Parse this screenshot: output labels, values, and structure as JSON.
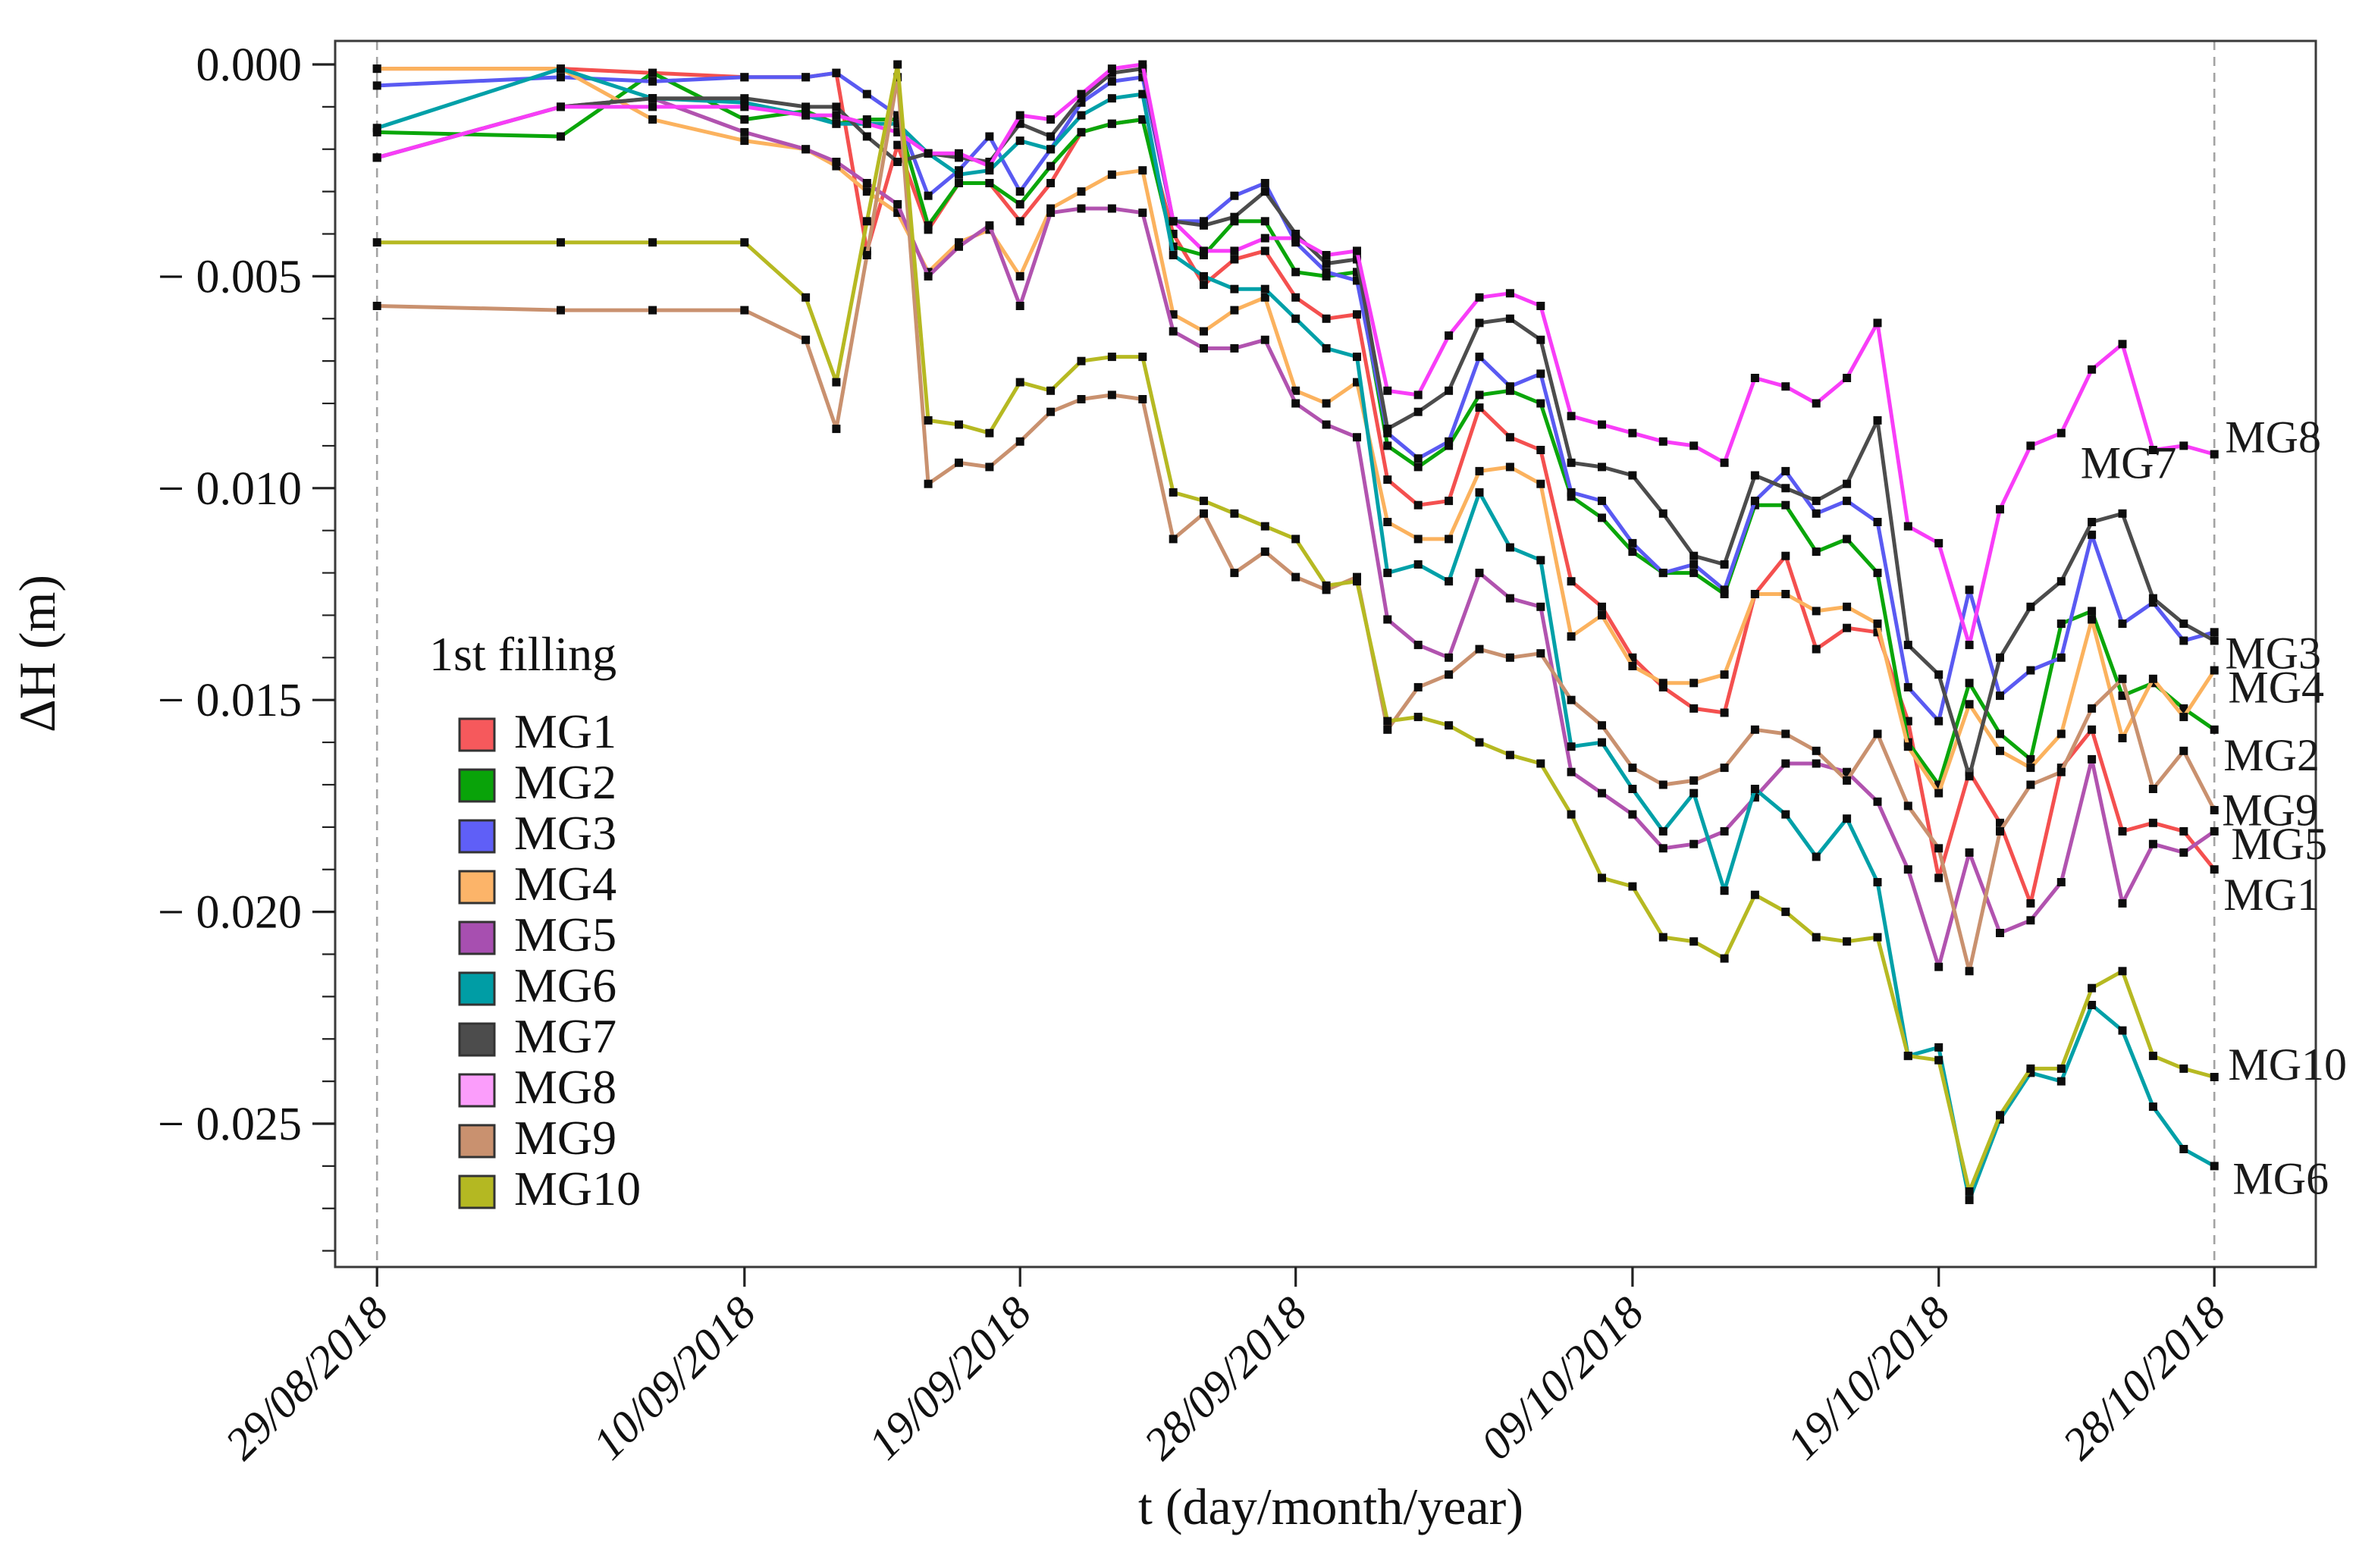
{
  "chart_data": {
    "type": "line",
    "title": "",
    "xlabel": "t (day/month/year)",
    "ylabel": "ΔH (m)",
    "legend_title": "1st filling",
    "legend_position": "inside-left",
    "grid": false,
    "x_start_date": "29/08/2018",
    "x_ticks": [
      {
        "day": 0,
        "label": "29/08/2018"
      },
      {
        "day": 12,
        "label": "10/09/2018"
      },
      {
        "day": 21,
        "label": "19/09/2018"
      },
      {
        "day": 30,
        "label": "28/09/2018"
      },
      {
        "day": 41,
        "label": "09/10/2018"
      },
      {
        "day": 51,
        "label": "19/10/2018"
      },
      {
        "day": 60,
        "label": "28/10/2018"
      }
    ],
    "y_ticks": [
      {
        "v": 0.0,
        "label": "0.000"
      },
      {
        "v": -0.005,
        "label": "− 0.005"
      },
      {
        "v": -0.01,
        "label": "− 0.010"
      },
      {
        "v": -0.015,
        "label": "− 0.015"
      },
      {
        "v": -0.02,
        "label": "− 0.020"
      },
      {
        "v": -0.025,
        "label": "− 0.025"
      }
    ],
    "y_minor_step": 0.001,
    "ylim": [
      -0.0284,
      0.00055
    ],
    "xlim_days": [
      -1.35,
      63.3
    ],
    "dashed_vlines_days": [
      0,
      60
    ],
    "marker": "black-square",
    "days": [
      0,
      6,
      9,
      12,
      14,
      15,
      16,
      17,
      18,
      19,
      20,
      21,
      22,
      23,
      24,
      25,
      26,
      27,
      28,
      29,
      30,
      31,
      32,
      33,
      34,
      35,
      36,
      37,
      38,
      39,
      40,
      41,
      42,
      43,
      44,
      45,
      46,
      47,
      48,
      49,
      50,
      51,
      52,
      53,
      54,
      55,
      56,
      57,
      58,
      59,
      60
    ],
    "series": [
      {
        "name": "MG1",
        "color": "#f4504f",
        "swatch": "#f6595c",
        "values": [
          -0.0001,
          -0.0001,
          -0.0002,
          -0.0003,
          -0.0003,
          -0.0002,
          -0.0044,
          -0.0019,
          -0.0039,
          -0.0028,
          -0.0028,
          -0.0037,
          -0.0028,
          -0.0016,
          -0.0014,
          -0.0013,
          -0.004,
          -0.0052,
          -0.0046,
          -0.0044,
          -0.0055,
          -0.006,
          -0.0059,
          -0.0098,
          -0.0104,
          -0.0103,
          -0.0081,
          -0.0088,
          -0.0091,
          -0.0122,
          -0.0128,
          -0.014,
          -0.0147,
          -0.0152,
          -0.0153,
          -0.0125,
          -0.0116,
          -0.0138,
          -0.0133,
          -0.0134,
          -0.0155,
          -0.0192,
          -0.0167,
          -0.0179,
          -0.0198,
          -0.0166,
          -0.0157,
          -0.0181,
          -0.0179,
          -0.0181,
          -0.019
        ]
      },
      {
        "name": "MG2",
        "color": "#0aa60a",
        "swatch": "#09a309",
        "values": [
          -0.0016,
          -0.0017,
          -0.0002,
          -0.0013,
          -0.0011,
          -0.0014,
          -0.0013,
          -0.0013,
          -0.0038,
          -0.0028,
          -0.0028,
          -0.0033,
          -0.0024,
          -0.0016,
          -0.0014,
          -0.0013,
          -0.0043,
          -0.0045,
          -0.0037,
          -0.0037,
          -0.0049,
          -0.005,
          -0.0049,
          -0.009,
          -0.0095,
          -0.009,
          -0.0078,
          -0.0077,
          -0.008,
          -0.0102,
          -0.0107,
          -0.0115,
          -0.012,
          -0.012,
          -0.0125,
          -0.0104,
          -0.0104,
          -0.0115,
          -0.0112,
          -0.012,
          -0.016,
          -0.017,
          -0.0146,
          -0.0158,
          -0.0164,
          -0.0132,
          -0.0129,
          -0.0149,
          -0.0146,
          -0.0152,
          -0.0157
        ]
      },
      {
        "name": "MG3",
        "color": "#5a5af2",
        "swatch": "#5f5ff7",
        "values": [
          -0.0005,
          -0.0003,
          -0.0004,
          -0.0003,
          -0.0003,
          -0.0002,
          -0.0007,
          -0.0012,
          -0.0031,
          -0.0025,
          -0.0017,
          -0.003,
          -0.002,
          -0.0009,
          -0.0004,
          -0.0003,
          -0.0037,
          -0.0037,
          -0.0031,
          -0.0028,
          -0.0042,
          -0.0049,
          -0.0051,
          -0.0087,
          -0.0093,
          -0.0089,
          -0.0069,
          -0.0076,
          -0.0073,
          -0.0101,
          -0.0103,
          -0.0113,
          -0.012,
          -0.0118,
          -0.0124,
          -0.0103,
          -0.0096,
          -0.0106,
          -0.0103,
          -0.0108,
          -0.0147,
          -0.0155,
          -0.0124,
          -0.0149,
          -0.0143,
          -0.014,
          -0.0111,
          -0.0132,
          -0.0127,
          -0.0136,
          -0.0134
        ]
      },
      {
        "name": "MG4",
        "color": "#fbb25e",
        "swatch": "#fcb469",
        "values": [
          -0.0001,
          -0.0001,
          -0.0013,
          -0.0018,
          -0.002,
          -0.0024,
          -0.003,
          -0.0035,
          -0.0049,
          -0.0042,
          -0.0039,
          -0.005,
          -0.0034,
          -0.003,
          -0.0026,
          -0.0025,
          -0.0059,
          -0.0063,
          -0.0058,
          -0.0055,
          -0.0077,
          -0.008,
          -0.0075,
          -0.0108,
          -0.0112,
          -0.0112,
          -0.0096,
          -0.0095,
          -0.0099,
          -0.0135,
          -0.013,
          -0.0142,
          -0.0146,
          -0.0146,
          -0.0144,
          -0.0125,
          -0.0125,
          -0.0129,
          -0.0128,
          -0.0132,
          -0.0161,
          -0.0172,
          -0.0151,
          -0.0162,
          -0.0166,
          -0.0158,
          -0.0131,
          -0.0159,
          -0.0145,
          -0.0154,
          -0.0143
        ]
      },
      {
        "name": "MG5",
        "color": "#b153af",
        "swatch": "#a74fb0",
        "values": [
          -0.0022,
          -0.001,
          -0.0008,
          -0.0016,
          -0.002,
          -0.0023,
          -0.0028,
          -0.0033,
          -0.005,
          -0.0043,
          -0.0038,
          -0.0057,
          -0.0035,
          -0.0034,
          -0.0034,
          -0.0035,
          -0.0063,
          -0.0067,
          -0.0067,
          -0.0065,
          -0.008,
          -0.0085,
          -0.0088,
          -0.0131,
          -0.0137,
          -0.014,
          -0.012,
          -0.0126,
          -0.0128,
          -0.0167,
          -0.0172,
          -0.0177,
          -0.0185,
          -0.0184,
          -0.0181,
          -0.0173,
          -0.0165,
          -0.0165,
          -0.0167,
          -0.0174,
          -0.019,
          -0.0213,
          -0.0186,
          -0.0205,
          -0.0202,
          -0.0193,
          -0.0164,
          -0.0198,
          -0.0184,
          -0.0186,
          -0.0181
        ]
      },
      {
        "name": "MG6",
        "color": "#00a0a8",
        "swatch": "#009da5",
        "values": [
          -0.0015,
          -0.0001,
          -0.0008,
          -0.0009,
          -0.0012,
          -0.0014,
          -0.0014,
          -0.0014,
          -0.0021,
          -0.0026,
          -0.0025,
          -0.0018,
          -0.002,
          -0.0012,
          -0.0008,
          -0.0007,
          -0.0045,
          -0.005,
          -0.0053,
          -0.0053,
          -0.006,
          -0.0067,
          -0.0069,
          -0.012,
          -0.0118,
          -0.0122,
          -0.0101,
          -0.0114,
          -0.0117,
          -0.0161,
          -0.016,
          -0.0171,
          -0.0181,
          -0.0172,
          -0.0195,
          -0.0171,
          -0.0177,
          -0.0187,
          -0.0178,
          -0.0193,
          -0.0234,
          -0.0232,
          -0.0268,
          -0.0249,
          -0.0238,
          -0.024,
          -0.0222,
          -0.0228,
          -0.0246,
          -0.0256,
          -0.026
        ]
      },
      {
        "name": "MG7",
        "color": "#4c4c4c",
        "swatch": "#4c4c4c",
        "values": [
          -0.0022,
          -0.001,
          -0.0008,
          -0.0008,
          -0.001,
          -0.001,
          -0.0017,
          -0.0023,
          -0.0021,
          -0.0022,
          -0.0023,
          -0.0014,
          -0.0017,
          -0.0008,
          -0.0002,
          -0.0001,
          -0.0037,
          -0.0038,
          -0.0036,
          -0.003,
          -0.004,
          -0.0047,
          -0.0046,
          -0.0086,
          -0.0082,
          -0.0077,
          -0.0061,
          -0.006,
          -0.0065,
          -0.0094,
          -0.0095,
          -0.0097,
          -0.0106,
          -0.0116,
          -0.0118,
          -0.0097,
          -0.01,
          -0.0103,
          -0.0099,
          -0.0084,
          -0.0137,
          -0.0144,
          -0.0168,
          -0.014,
          -0.0128,
          -0.0122,
          -0.0108,
          -0.0106,
          -0.0126,
          -0.0132,
          -0.0136
        ]
      },
      {
        "name": "MG8",
        "color": "#f83df8",
        "swatch": "#fb9dfb",
        "values": [
          -0.0022,
          -0.001,
          -0.001,
          -0.001,
          -0.0012,
          -0.0012,
          -0.0014,
          -0.0016,
          -0.0021,
          -0.0021,
          -0.0024,
          -0.0012,
          -0.0013,
          -0.0007,
          -0.0001,
          0.0,
          -0.0037,
          -0.0044,
          -0.0044,
          -0.0041,
          -0.0041,
          -0.0045,
          -0.0044,
          -0.0077,
          -0.0078,
          -0.0064,
          -0.0055,
          -0.0054,
          -0.0057,
          -0.0083,
          -0.0085,
          -0.0087,
          -0.0089,
          -0.009,
          -0.0094,
          -0.0074,
          -0.0076,
          -0.008,
          -0.0074,
          -0.0061,
          -0.0109,
          -0.0113,
          -0.0137,
          -0.0105,
          -0.009,
          -0.0087,
          -0.0072,
          -0.0066,
          -0.0091,
          -0.009,
          -0.0092
        ]
      },
      {
        "name": "MG9",
        "color": "#c9916f",
        "swatch": "#c9916f",
        "values": [
          -0.0057,
          -0.0058,
          -0.0058,
          -0.0058,
          -0.0065,
          -0.0086,
          -0.0045,
          -0.0003,
          -0.0099,
          -0.0094,
          -0.0095,
          -0.0089,
          -0.0082,
          -0.0079,
          -0.0078,
          -0.0079,
          -0.0112,
          -0.0106,
          -0.012,
          -0.0115,
          -0.0121,
          -0.0124,
          -0.0121,
          -0.0157,
          -0.0147,
          -0.0144,
          -0.0138,
          -0.014,
          -0.0139,
          -0.015,
          -0.0156,
          -0.0166,
          -0.017,
          -0.0169,
          -0.0166,
          -0.0157,
          -0.0158,
          -0.0162,
          -0.0169,
          -0.0158,
          -0.0175,
          -0.0185,
          -0.0214,
          -0.0181,
          -0.017,
          -0.0167,
          -0.0152,
          -0.0145,
          -0.0171,
          -0.0162,
          -0.0176
        ]
      },
      {
        "name": "MG10",
        "color": "#b6b922",
        "swatch": "#b4b822",
        "values": [
          -0.0042,
          -0.0042,
          -0.0042,
          -0.0042,
          -0.0055,
          -0.0075,
          -0.0037,
          0.0,
          -0.0084,
          -0.0085,
          -0.0087,
          -0.0075,
          -0.0077,
          -0.007,
          -0.0069,
          -0.0069,
          -0.0101,
          -0.0103,
          -0.0106,
          -0.0109,
          -0.0112,
          -0.0123,
          -0.0122,
          -0.0155,
          -0.0154,
          -0.0156,
          -0.016,
          -0.0163,
          -0.0165,
          -0.0177,
          -0.0192,
          -0.0194,
          -0.0206,
          -0.0207,
          -0.0211,
          -0.0196,
          -0.02,
          -0.0206,
          -0.0207,
          -0.0206,
          -0.0234,
          -0.0235,
          -0.0266,
          -0.0248,
          -0.0237,
          -0.0237,
          -0.0218,
          -0.0214,
          -0.0234,
          -0.0237,
          -0.0239
        ]
      }
    ],
    "annotations": [
      {
        "text": "MG8",
        "day": 60.35,
        "v": -0.0088,
        "anchor": "start"
      },
      {
        "text": "MG7",
        "day": 57.2,
        "v": -0.0094,
        "anchor": "middle"
      },
      {
        "text": "MG3",
        "day": 60.35,
        "v": -0.0139,
        "anchor": "start"
      },
      {
        "text": "MG4",
        "day": 60.45,
        "v": -0.0147,
        "anchor": "start"
      },
      {
        "text": "MG2",
        "day": 60.3,
        "v": -0.0163,
        "anchor": "start"
      },
      {
        "text": "MG9",
        "day": 60.25,
        "v": -0.0176,
        "anchor": "start"
      },
      {
        "text": "MG5",
        "day": 60.55,
        "v": -0.0184,
        "anchor": "start"
      },
      {
        "text": "MG1",
        "day": 60.3,
        "v": -0.0196,
        "anchor": "start"
      },
      {
        "text": "MG10",
        "day": 60.45,
        "v": -0.0236,
        "anchor": "start"
      },
      {
        "text": "MG6",
        "day": 60.6,
        "v": -0.0263,
        "anchor": "start"
      }
    ]
  }
}
